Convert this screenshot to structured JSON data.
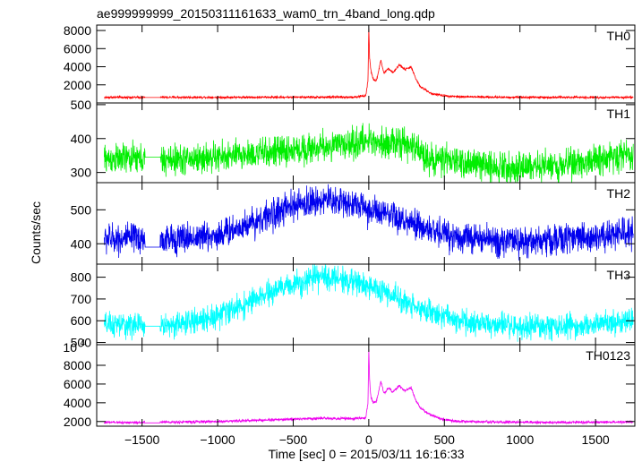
{
  "chart_data": {
    "type": "line",
    "title": "ae999999999_20150311161633_wam0_trn_4band_long.qdp",
    "xlabel": "Time [sec] 0 = 2015/03/11 16:16:33",
    "ylabel": "Counts/sec",
    "xlim": [
      -1800,
      1760
    ],
    "x_ticks": [
      -1500,
      -1000,
      -500,
      0,
      500,
      1000,
      1500
    ],
    "x_tick_labels": [
      "−1500",
      "−1000",
      "−500",
      "0",
      "500",
      "1000",
      "1500"
    ],
    "panels": [
      {
        "name": "TH0",
        "color": "#ff0000",
        "ylim": [
          0,
          8600
        ],
        "y_ticks": [
          2000,
          4000,
          6000,
          8000
        ],
        "y_tick_labels": [
          "2000",
          "4000",
          "6000",
          "8000"
        ],
        "noise": 60,
        "gap": [
          -1480,
          -1380
        ],
        "gap_value": 600,
        "x": [
          -1750,
          -1500,
          -1000,
          -500,
          -100,
          -20,
          -5,
          0,
          5,
          15,
          30,
          50,
          80,
          100,
          130,
          160,
          200,
          240,
          280,
          310,
          340,
          380,
          420,
          500,
          600,
          800,
          1200,
          1750
        ],
        "y": [
          620,
          620,
          620,
          640,
          650,
          800,
          2500,
          8500,
          5000,
          3500,
          2600,
          2400,
          4700,
          3300,
          3800,
          3300,
          4200,
          3700,
          4000,
          2700,
          1800,
          1400,
          1000,
          800,
          700,
          640,
          620,
          620
        ]
      },
      {
        "name": "TH1",
        "color": "#00ee00",
        "ylim": [
          270,
          505
        ],
        "y_ticks": [
          300,
          400,
          500
        ],
        "y_tick_labels": [
          "300",
          "400",
          "500"
        ],
        "noise": 22,
        "gap": [
          -1480,
          -1380
        ],
        "gap_value": 345,
        "x": [
          -1750,
          -1500,
          -1380,
          -1000,
          -500,
          -100,
          0,
          100,
          200,
          300,
          400,
          600,
          800,
          1000,
          1200,
          1400,
          1600,
          1750
        ],
        "y": [
          340,
          340,
          335,
          345,
          365,
          385,
          395,
          390,
          385,
          375,
          340,
          330,
          320,
          315,
          320,
          330,
          345,
          355
        ]
      },
      {
        "name": "TH2",
        "color": "#0000ee",
        "ylim": [
          340,
          580
        ],
        "y_ticks": [
          400,
          500
        ],
        "y_tick_labels": [
          "400",
          "500"
        ],
        "noise": 22,
        "gap": [
          -1480,
          -1380
        ],
        "gap_value": 390,
        "x": [
          -1750,
          -1500,
          -1380,
          -1000,
          -700,
          -500,
          -300,
          -100,
          0,
          200,
          400,
          600,
          800,
          1000,
          1200,
          1400,
          1600,
          1750
        ],
        "y": [
          415,
          415,
          410,
          425,
          475,
          510,
          530,
          520,
          500,
          470,
          440,
          420,
          410,
          405,
          410,
          420,
          425,
          430
        ]
      },
      {
        "name": "TH3",
        "color": "#00ffff",
        "ylim": [
          490,
          860
        ],
        "y_ticks": [
          500,
          600,
          700,
          800
        ],
        "y_tick_labels": [
          "500",
          "600",
          "700",
          "800"
        ],
        "noise": 28,
        "gap": [
          -1480,
          -1380
        ],
        "gap_value": 575,
        "x": [
          -1750,
          -1500,
          -1380,
          -1200,
          -1000,
          -800,
          -600,
          -400,
          -300,
          -200,
          0,
          200,
          400,
          600,
          800,
          1000,
          1200,
          1400,
          1600,
          1750
        ],
        "y": [
          580,
          580,
          575,
          590,
          625,
          680,
          745,
          790,
          800,
          795,
          760,
          700,
          640,
          600,
          580,
          570,
          570,
          580,
          590,
          600
        ]
      },
      {
        "name": "TH0123",
        "color": "#ee00ee",
        "ylim": [
          1500,
          10200
        ],
        "y_ticks": [
          2000,
          4000,
          6000,
          8000
        ],
        "y_tick_labels": [
          "2000",
          "4000",
          "6000",
          "8000"
        ],
        "y_exp_label": "10",
        "y_exp_sup": "4",
        "noise": 70,
        "gap": [
          -1480,
          -1380
        ],
        "gap_value": 1850,
        "x": [
          -1750,
          -1500,
          -1000,
          -500,
          -300,
          -100,
          -20,
          -5,
          0,
          5,
          15,
          30,
          50,
          80,
          100,
          130,
          160,
          200,
          240,
          280,
          310,
          340,
          380,
          420,
          500,
          600,
          800,
          1200,
          1750
        ],
        "y": [
          1900,
          1900,
          2000,
          2250,
          2350,
          2300,
          2400,
          4000,
          10000,
          6500,
          4500,
          4000,
          4100,
          6300,
          5000,
          5600,
          5100,
          5800,
          5300,
          5600,
          4300,
          3500,
          3000,
          2600,
          2200,
          2000,
          1950,
          1900,
          1950
        ]
      }
    ]
  }
}
